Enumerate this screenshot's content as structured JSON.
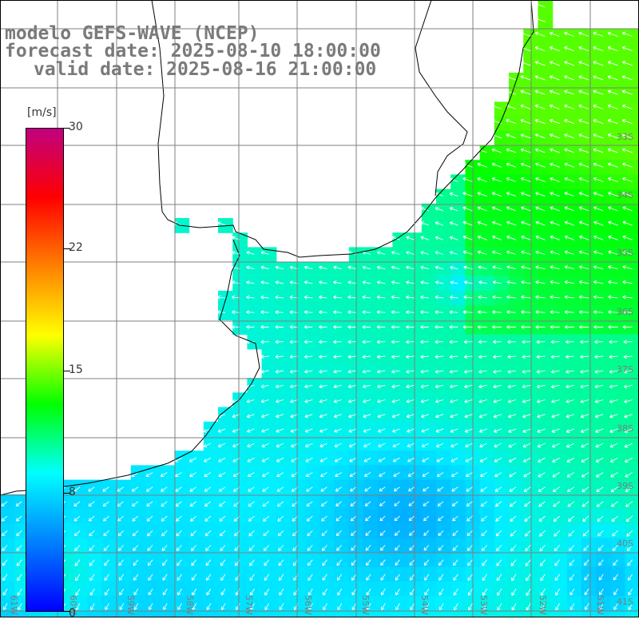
{
  "header": {
    "model_line": "modelo GEFS-WAVE (NCEP)",
    "forecast_line": "forecast date: 2025-08-10 18:00:00",
    "valid_line": "valid date: 2025-08-16 21:00:00"
  },
  "colorbar": {
    "unit": "[m/s]",
    "ticks": [
      "30",
      "22",
      "15",
      "8",
      "0"
    ],
    "tick_values": [
      30,
      22,
      15,
      8,
      0
    ],
    "min": 0,
    "max": 30,
    "colors": [
      "#0000ff",
      "#0080ff",
      "#00ffff",
      "#00ff00",
      "#ffff00",
      "#ff8000",
      "#ff0000",
      "#c00080"
    ]
  },
  "map": {
    "region": "South-western Atlantic / Rio de la Plata",
    "land_color": "#ffffff",
    "grid_color": "#7f7f7f",
    "lat_labels": [
      "33S",
      "34S",
      "35S",
      "36S",
      "37S",
      "38S",
      "39S",
      "40S",
      "41S"
    ],
    "lon_labels": [
      "61W",
      "60W",
      "59W",
      "58W",
      "57W",
      "56W",
      "55W",
      "54W",
      "53W",
      "52W",
      "51W"
    ]
  }
}
